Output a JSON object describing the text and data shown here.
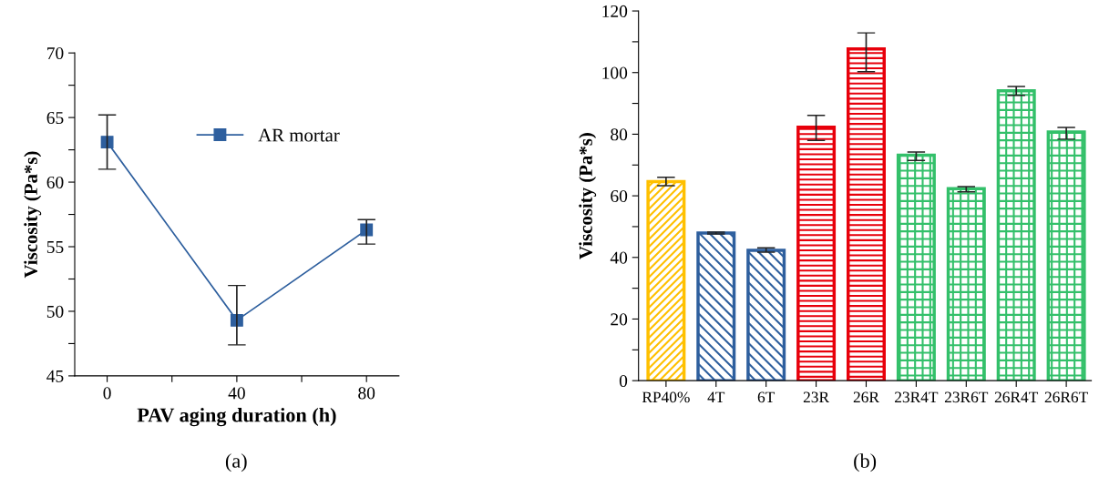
{
  "chart_data": [
    {
      "type": "line",
      "xlabel": "PAV aging duration (h)",
      "ylabel": "Viscosity (Pa*s)",
      "x": [
        0,
        40,
        80
      ],
      "series": [
        {
          "name": "AR mortar",
          "color": "#2e5f9e",
          "values": [
            63.1,
            49.3,
            56.3
          ],
          "errors": [
            [
              61.0,
              65.2
            ],
            [
              47.4,
              52.0
            ],
            [
              55.2,
              57.1
            ]
          ]
        }
      ],
      "xlim": [
        -10,
        90
      ],
      "xticks": [
        0,
        {
          "value": 20,
          "label": null
        },
        40,
        {
          "value": 60,
          "label": null
        },
        80
      ],
      "ylim": [
        45,
        70
      ],
      "yticks": [
        45,
        {
          "value": 47.5,
          "label": null
        },
        50,
        {
          "value": 52.5,
          "label": null
        },
        55,
        {
          "value": 57.5,
          "label": null
        },
        60,
        {
          "value": 62.5,
          "label": null
        },
        65,
        {
          "value": 67.5,
          "label": null
        },
        70
      ],
      "marker": "square",
      "line_style": "solid",
      "legend": "top right",
      "grid": false,
      "annotations": [
        "(a)"
      ]
    },
    {
      "type": "bar",
      "ylabel": "Viscosity (Pa*s)",
      "categories": [
        "RP40%",
        "4T",
        "6T",
        "23R",
        "26R",
        "23R4T",
        "23R6T",
        "26R4T",
        "26R6T"
      ],
      "values": [
        64.6,
        47.9,
        42.3,
        82.3,
        107.7,
        73.2,
        62.3,
        94.1,
        80.7
      ],
      "errors": [
        [
          63.3,
          66.0
        ],
        [
          47.6,
          48.2
        ],
        [
          41.7,
          43.1
        ],
        [
          78.0,
          86.1
        ],
        [
          100.3,
          112.9
        ],
        [
          71.5,
          74.2
        ],
        [
          61.3,
          63.0
        ],
        [
          92.6,
          95.5
        ],
        [
          78.4,
          82.2
        ]
      ],
      "colors": [
        "#ffc000",
        "#2e5f9e",
        "#2e5f9e",
        "#e8000b",
        "#e8000b",
        "#33c06a",
        "#33c06a",
        "#33c06a",
        "#33c06a"
      ],
      "ylim": [
        0,
        120
      ],
      "yticks": [
        0,
        {
          "value": 10,
          "label": null
        },
        20,
        {
          "value": 30,
          "label": null
        },
        40,
        {
          "value": 50,
          "label": null
        },
        60,
        {
          "value": 70,
          "label": null
        },
        80,
        {
          "value": 90,
          "label": null
        },
        100,
        {
          "value": 110,
          "label": null
        },
        120
      ],
      "grid": false,
      "legend": false,
      "annotations": [
        "(b)"
      ]
    }
  ]
}
